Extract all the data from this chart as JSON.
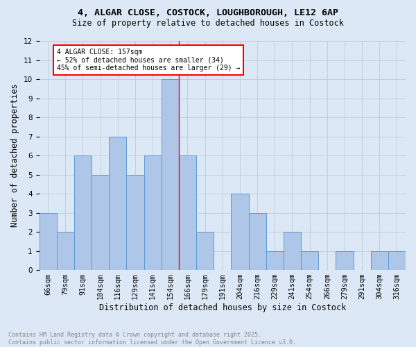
{
  "title_line1": "4, ALGAR CLOSE, COSTOCK, LOUGHBOROUGH, LE12 6AP",
  "title_line2": "Size of property relative to detached houses in Costock",
  "xlabel": "Distribution of detached houses by size in Costock",
  "ylabel": "Number of detached properties",
  "bar_labels": [
    "66sqm",
    "79sqm",
    "91sqm",
    "104sqm",
    "116sqm",
    "129sqm",
    "141sqm",
    "154sqm",
    "166sqm",
    "179sqm",
    "191sqm",
    "204sqm",
    "216sqm",
    "229sqm",
    "241sqm",
    "254sqm",
    "266sqm",
    "279sqm",
    "291sqm",
    "304sqm",
    "316sqm"
  ],
  "bar_values": [
    3,
    2,
    6,
    5,
    7,
    5,
    6,
    10,
    6,
    2,
    0,
    4,
    3,
    1,
    2,
    1,
    0,
    1,
    0,
    1,
    1
  ],
  "bar_color": "#aec6e8",
  "bar_edge_color": "#5b9bd5",
  "vline_x_index": 7.5,
  "annotation_text": "4 ALGAR CLOSE: 157sqm\n← 52% of detached houses are smaller (34)\n45% of semi-detached houses are larger (29) →",
  "annotation_box_color": "white",
  "annotation_border_color": "red",
  "vline_color": "red",
  "ylim": [
    0,
    12
  ],
  "yticks": [
    0,
    1,
    2,
    3,
    4,
    5,
    6,
    7,
    8,
    9,
    10,
    11,
    12
  ],
  "grid_color": "#bbccdd",
  "background_color": "#dce8f5",
  "footer_text": "Contains HM Land Registry data © Crown copyright and database right 2025.\nContains public sector information licensed under the Open Government Licence v3.0.",
  "footer_color": "#888888",
  "title1_fontsize": 9.5,
  "title2_fontsize": 8.5,
  "annotation_fontsize": 7.0,
  "xlabel_fontsize": 8.5,
  "ylabel_fontsize": 8.5,
  "tick_fontsize": 7.5,
  "footer_fontsize": 6.0
}
